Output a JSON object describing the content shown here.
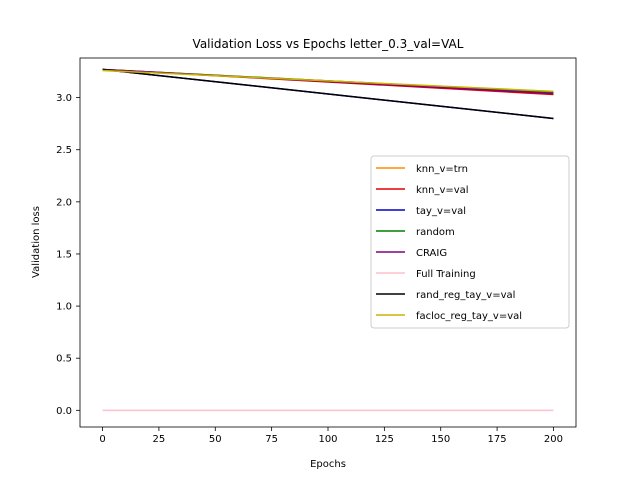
{
  "chart_data": {
    "type": "line",
    "title": "Validation Loss vs Epochs letter_0.3_val=VAL",
    "xlabel": "Epochs",
    "ylabel": "Validation loss",
    "xlim": [
      -10,
      210
    ],
    "ylim": [
      -0.16,
      3.38
    ],
    "xticks": [
      0,
      25,
      50,
      75,
      100,
      125,
      150,
      175,
      200
    ],
    "yticks": [
      0.0,
      0.5,
      1.0,
      1.5,
      2.0,
      2.5,
      3.0
    ],
    "xtick_labels": [
      "0",
      "25",
      "50",
      "75",
      "100",
      "125",
      "150",
      "175",
      "200"
    ],
    "ytick_labels": [
      "0.0",
      "0.5",
      "1.0",
      "1.5",
      "2.0",
      "2.5",
      "3.0"
    ],
    "grid": false,
    "legend_position": "center-right",
    "x": [
      0,
      200
    ],
    "series": [
      {
        "name": "knn_v=trn",
        "color": "#ff8c00",
        "values": [
          3.27,
          3.05
        ]
      },
      {
        "name": "knn_v=val",
        "color": "#e00000",
        "values": [
          3.27,
          3.03
        ]
      },
      {
        "name": "tay_v=val",
        "color": "#0000cc",
        "values": [
          3.27,
          2.8
        ]
      },
      {
        "name": "random",
        "color": "#008000",
        "values": [
          3.27,
          3.05
        ]
      },
      {
        "name": "CRAIG",
        "color": "#800080",
        "values": [
          3.27,
          3.04
        ]
      },
      {
        "name": "Full Training",
        "color": "#ffc0cb",
        "values": [
          0.0,
          0.0
        ]
      },
      {
        "name": "rand_reg_tay_v=val",
        "color": "#000000",
        "values": [
          3.27,
          2.8
        ]
      },
      {
        "name": "facloc_reg_tay_v=val",
        "color": "#c8b400",
        "values": [
          3.26,
          3.06
        ]
      }
    ]
  }
}
